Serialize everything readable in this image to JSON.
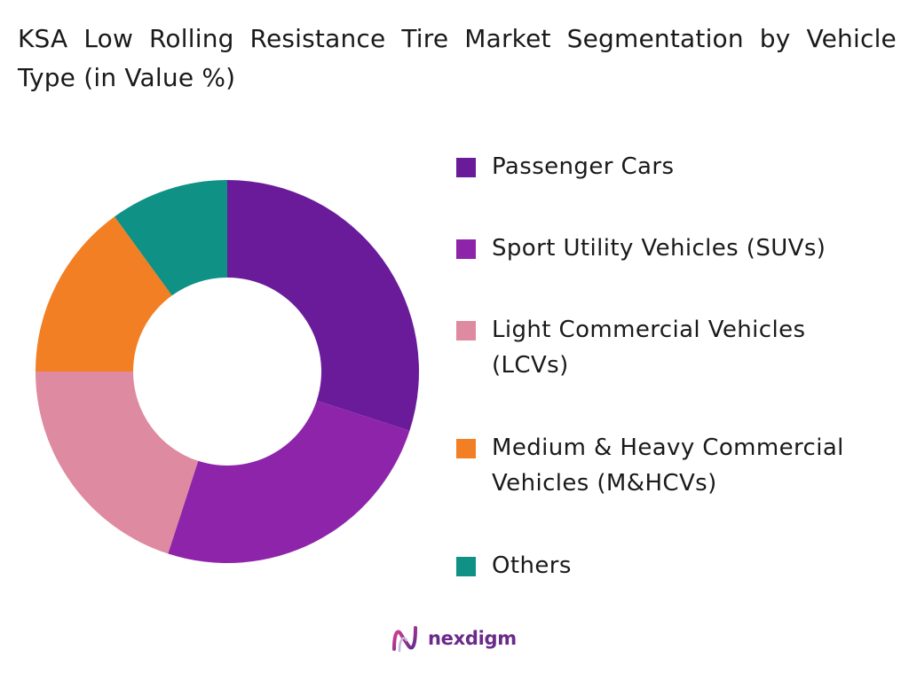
{
  "chart_data": {
    "type": "pie",
    "title": "KSA Low Rolling Resistance Tire Market Segmentation by Vehicle Type (in Value %)",
    "categories": [
      "Passenger Cars",
      "Sport Utility Vehicles (SUVs)",
      "Light Commercial Vehicles (LCVs)",
      "Medium & Heavy Commercial Vehicles (M&HCVs)",
      "Others"
    ],
    "values": [
      30,
      25,
      20,
      15,
      10
    ],
    "colors": [
      "#6a1b9a",
      "#8e24aa",
      "#de8aa0",
      "#f37f24",
      "#0f9186"
    ],
    "donut": true,
    "legend_position": "right"
  },
  "legend": [
    {
      "label": "Passenger Cars",
      "color": "#6a1b9a"
    },
    {
      "label": "Sport Utility Vehicles (SUVs)",
      "color": "#8e24aa"
    },
    {
      "label": "Light Commercial Vehicles (LCVs)",
      "color": "#de8aa0"
    },
    {
      "label": "Medium & Heavy Commercial Vehicles (M&HCVs)",
      "color": "#f37f24"
    },
    {
      "label": "Others",
      "color": "#0f9186"
    }
  ],
  "brand": {
    "name": "nexdigm",
    "logo_icon": "nexdigm-logo-icon",
    "color": "#6a2a8a"
  }
}
